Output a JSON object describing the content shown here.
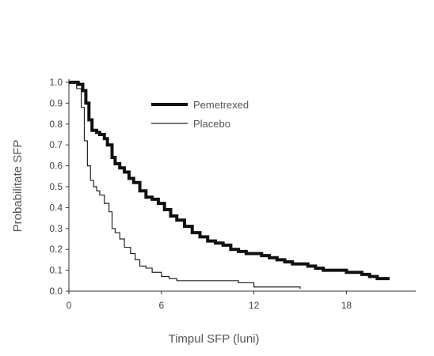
{
  "chart_data": {
    "type": "line",
    "title": "",
    "xlabel": "Timpul SFP (luni)",
    "ylabel": "Probabilitate SFP",
    "xlim": [
      0,
      22.5
    ],
    "ylim": [
      0,
      1.0
    ],
    "x_ticks": [
      0,
      6,
      12,
      18
    ],
    "x_tick_labels": [
      "0",
      "6",
      "12",
      "18"
    ],
    "y_ticks": [
      0,
      0.1,
      0.2,
      0.3,
      0.4,
      0.5,
      0.6,
      0.7,
      0.8,
      0.9,
      1.0
    ],
    "y_tick_labels": [
      "0.0",
      "0.1",
      "0.2",
      "0.3",
      "0.4",
      "0.5",
      "0.6",
      "0.7",
      "0.8",
      "0.9",
      "1.0"
    ],
    "grid": false,
    "legend_position": "top-center",
    "step": true,
    "series": [
      {
        "name": "Pemetrexed",
        "color": "#111111",
        "weight": "bold",
        "x": [
          0,
          0.6,
          0.9,
          1.1,
          1.3,
          1.5,
          1.8,
          2.0,
          2.3,
          2.5,
          2.8,
          3.0,
          3.3,
          3.6,
          3.9,
          4.2,
          4.6,
          5.0,
          5.4,
          5.8,
          6.2,
          6.6,
          7.0,
          7.5,
          8.0,
          8.5,
          9.0,
          9.5,
          10.0,
          10.5,
          11.0,
          11.5,
          12.0,
          12.5,
          13.0,
          13.5,
          14.0,
          14.5,
          15.0,
          15.5,
          16.0,
          16.5,
          17.0,
          17.5,
          18.0,
          18.5,
          19.0,
          19.5,
          20.0,
          20.8
        ],
        "values": [
          1.0,
          0.99,
          0.96,
          0.9,
          0.82,
          0.77,
          0.76,
          0.75,
          0.73,
          0.7,
          0.64,
          0.61,
          0.59,
          0.57,
          0.54,
          0.52,
          0.48,
          0.45,
          0.44,
          0.42,
          0.39,
          0.36,
          0.34,
          0.31,
          0.28,
          0.26,
          0.24,
          0.23,
          0.22,
          0.2,
          0.19,
          0.18,
          0.18,
          0.17,
          0.16,
          0.15,
          0.14,
          0.13,
          0.13,
          0.12,
          0.11,
          0.1,
          0.1,
          0.1,
          0.09,
          0.09,
          0.08,
          0.07,
          0.06,
          0.06
        ]
      },
      {
        "name": "Placebo",
        "color": "#222222",
        "weight": "thin",
        "x": [
          0,
          0.5,
          0.8,
          1.0,
          1.2,
          1.4,
          1.6,
          1.8,
          2.0,
          2.3,
          2.6,
          2.8,
          3.0,
          3.3,
          3.6,
          4.0,
          4.3,
          4.6,
          5.0,
          5.4,
          6.0,
          6.5,
          7.0,
          8.0,
          9.0,
          10.0,
          11.0,
          12.0,
          13.0,
          14.0,
          15.0
        ],
        "values": [
          1.0,
          0.97,
          0.88,
          0.72,
          0.6,
          0.53,
          0.5,
          0.48,
          0.46,
          0.42,
          0.38,
          0.3,
          0.28,
          0.25,
          0.21,
          0.18,
          0.15,
          0.12,
          0.11,
          0.09,
          0.07,
          0.06,
          0.05,
          0.05,
          0.05,
          0.05,
          0.04,
          0.02,
          0.02,
          0.02,
          0.01
        ]
      }
    ]
  }
}
